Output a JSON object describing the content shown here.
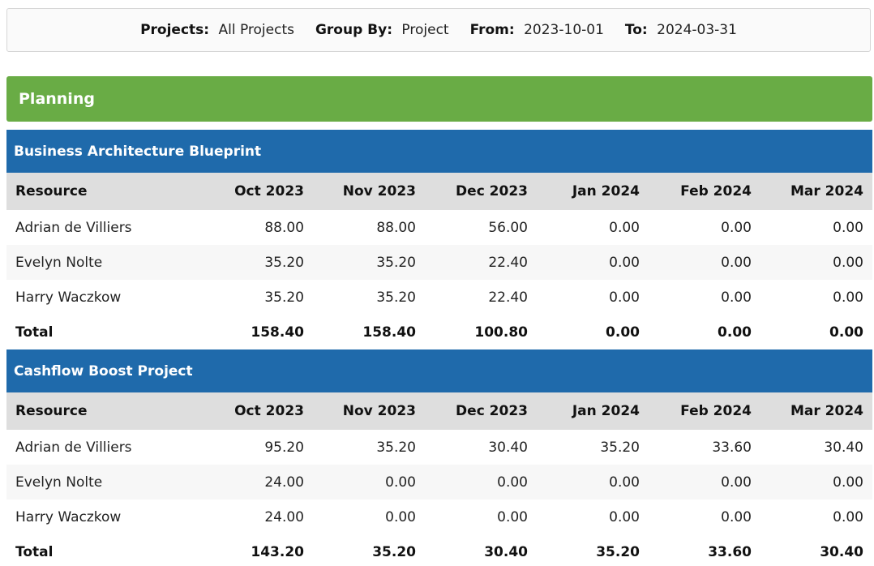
{
  "filters": {
    "projects_label": "Projects:",
    "projects_value": "All Projects",
    "group_by_label": "Group By:",
    "group_by_value": "Project",
    "from_label": "From:",
    "from_value": "2023-10-01",
    "to_label": "To:",
    "to_value": "2024-03-31"
  },
  "group": {
    "title": "Planning"
  },
  "columns": [
    "Resource",
    "Oct 2023",
    "Nov 2023",
    "Dec 2023",
    "Jan 2024",
    "Feb 2024",
    "Mar 2024"
  ],
  "projects": [
    {
      "title": "Business Architecture Blueprint",
      "rows": [
        {
          "name": "Adrian de Villiers",
          "values": [
            "88.00",
            "88.00",
            "56.00",
            "0.00",
            "0.00",
            "0.00"
          ]
        },
        {
          "name": "Evelyn Nolte",
          "values": [
            "35.20",
            "35.20",
            "22.40",
            "0.00",
            "0.00",
            "0.00"
          ]
        },
        {
          "name": "Harry Waczkow",
          "values": [
            "35.20",
            "35.20",
            "22.40",
            "0.00",
            "0.00",
            "0.00"
          ]
        }
      ],
      "total": {
        "name": "Total",
        "values": [
          "158.40",
          "158.40",
          "100.80",
          "0.00",
          "0.00",
          "0.00"
        ]
      }
    },
    {
      "title": "Cashflow Boost Project",
      "rows": [
        {
          "name": "Adrian de Villiers",
          "values": [
            "95.20",
            "35.20",
            "30.40",
            "35.20",
            "33.60",
            "30.40"
          ]
        },
        {
          "name": "Evelyn Nolte",
          "values": [
            "24.00",
            "0.00",
            "0.00",
            "0.00",
            "0.00",
            "0.00"
          ]
        },
        {
          "name": "Harry Waczkow",
          "values": [
            "24.00",
            "0.00",
            "0.00",
            "0.00",
            "0.00",
            "0.00"
          ]
        }
      ],
      "total": {
        "name": "Total",
        "values": [
          "143.20",
          "35.20",
          "30.40",
          "35.20",
          "33.60",
          "30.40"
        ]
      }
    }
  ]
}
